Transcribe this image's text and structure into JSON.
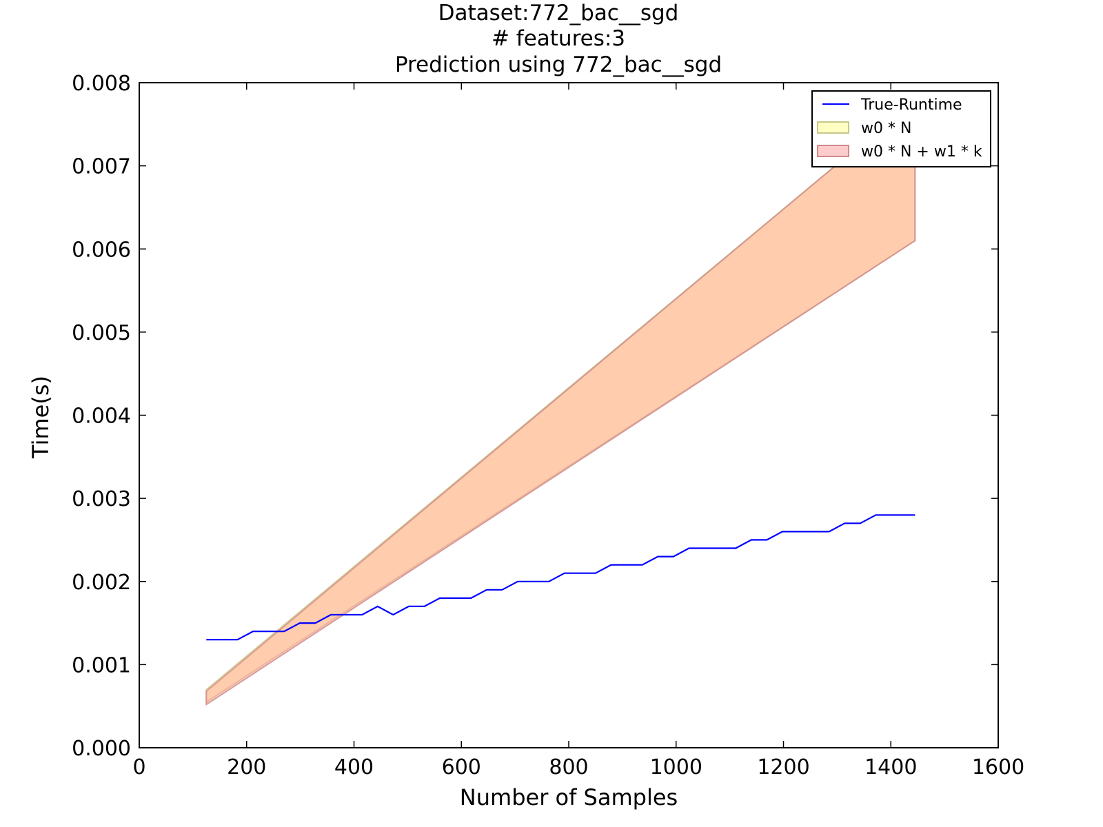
{
  "chart_data": {
    "type": "line",
    "title_lines": [
      "Dataset:772_bac__sgd",
      "# features:3",
      "Prediction using 772_bac__sgd"
    ],
    "xlabel": "Number of Samples",
    "ylabel": "Time(s)",
    "xlim": [
      0,
      1600
    ],
    "ylim": [
      0,
      0.008
    ],
    "xticks": [
      0,
      200,
      400,
      600,
      800,
      1000,
      1200,
      1400,
      1600
    ],
    "xtick_labels": [
      "0",
      "200",
      "400",
      "600",
      "800",
      "1000",
      "1200",
      "1400",
      "1600"
    ],
    "yticks": [
      0,
      0.001,
      0.002,
      0.003,
      0.004,
      0.005,
      0.006,
      0.007,
      0.008
    ],
    "ytick_labels": [
      "0.000",
      "0.001",
      "0.002",
      "0.003",
      "0.004",
      "0.005",
      "0.006",
      "0.007",
      "0.008"
    ],
    "grid": false,
    "legend_position": "top-right",
    "series": [
      {
        "name": "True-Runtime",
        "kind": "line",
        "color": "#0000ff",
        "x": [
          125,
          154,
          183,
          212,
          241,
          270,
          299,
          328,
          357,
          386,
          415,
          444,
          473,
          502,
          531,
          560,
          589,
          618,
          647,
          676,
          705,
          734,
          763,
          792,
          821,
          850,
          879,
          908,
          937,
          966,
          995,
          1024,
          1053,
          1082,
          1111,
          1140,
          1169,
          1198,
          1227,
          1256,
          1285,
          1314,
          1343,
          1372,
          1401,
          1430,
          1445
        ],
        "y": [
          0.0013,
          0.0013,
          0.0013,
          0.0014,
          0.0014,
          0.0014,
          0.0015,
          0.0015,
          0.0016,
          0.0016,
          0.0016,
          0.0017,
          0.0016,
          0.0017,
          0.0017,
          0.0018,
          0.0018,
          0.0018,
          0.0019,
          0.0019,
          0.002,
          0.002,
          0.002,
          0.0021,
          0.0021,
          0.0021,
          0.0022,
          0.0022,
          0.0022,
          0.0023,
          0.0023,
          0.0024,
          0.0024,
          0.0024,
          0.0024,
          0.0025,
          0.0025,
          0.0026,
          0.0026,
          0.0026,
          0.0026,
          0.0027,
          0.0027,
          0.0028,
          0.0028,
          0.0028,
          0.0028
        ]
      },
      {
        "name": "w0 * N",
        "kind": "band",
        "color": "#ffff99",
        "edge_color": "#c8c88a",
        "opacity": 0.6,
        "x": [
          125,
          1445,
          1445
        ],
        "upper": [
          0.0007,
          0.0078,
          0.0078
        ],
        "lower": [
          0.00055,
          0.0061,
          0.0061
        ]
      },
      {
        "name": "w0 * N + w1 * k",
        "kind": "band",
        "color": "#ff9999",
        "edge_color": "#d08a8a",
        "opacity": 0.5,
        "x": [
          125,
          1445,
          1445
        ],
        "upper": [
          0.00068,
          0.0078,
          0.0078
        ],
        "lower": [
          0.00052,
          0.0061,
          0.0061
        ]
      }
    ]
  }
}
